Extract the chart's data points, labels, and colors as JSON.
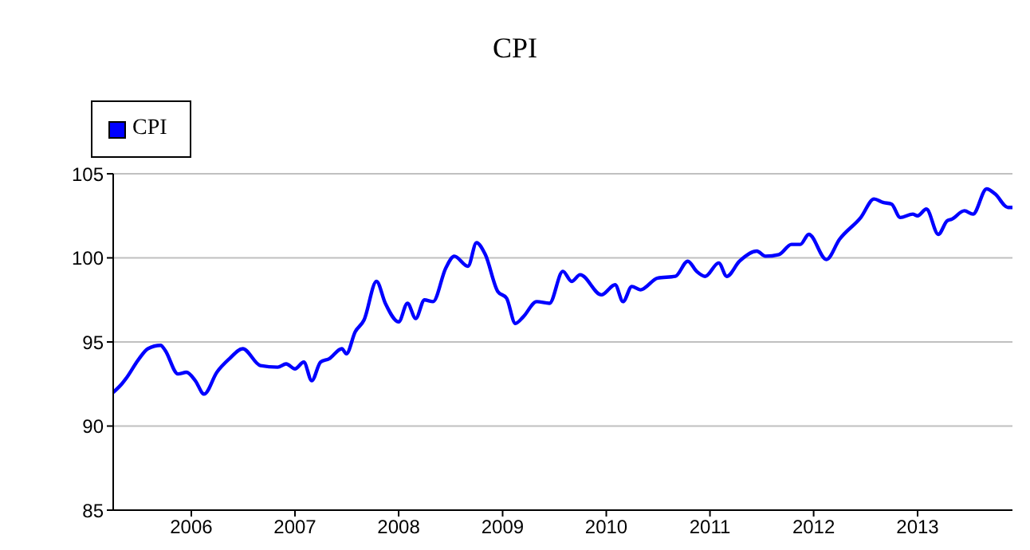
{
  "chart_data": {
    "type": "line",
    "title": "CPI",
    "x": [
      "2005-04-01",
      "2005-05-01",
      "2005-05-15",
      "2005-07-01",
      "2005-08-01",
      "2005-09-15",
      "2005-10-01",
      "2005-11-15",
      "2005-12-15",
      "2006-01-15",
      "2006-02-15",
      "2006-04-01",
      "2006-05-15",
      "2006-07-01",
      "2006-09-01",
      "2006-11-01",
      "2006-12-01",
      "2007-01-01",
      "2007-02-01",
      "2007-03-01",
      "2007-04-01",
      "2007-05-01",
      "2007-06-15",
      "2007-07-01",
      "2007-08-01",
      "2007-09-01",
      "2007-10-15",
      "2007-11-15",
      "2008-01-01",
      "2008-02-01",
      "2008-03-01",
      "2008-04-01",
      "2008-05-01",
      "2008-06-15",
      "2008-07-15",
      "2008-09-01",
      "2008-10-01",
      "2008-11-01",
      "2008-12-15",
      "2009-01-15",
      "2009-02-15",
      "2009-03-15",
      "2009-05-01",
      "2009-06-15",
      "2009-08-01",
      "2009-09-01",
      "2009-10-01",
      "2009-12-15",
      "2010-02-01",
      "2010-03-01",
      "2010-04-01",
      "2010-05-01",
      "2010-07-01",
      "2010-09-01",
      "2010-10-15",
      "2010-11-15",
      "2010-12-15",
      "2011-02-01",
      "2011-03-01",
      "2011-04-15",
      "2011-06-15",
      "2011-07-15",
      "2011-09-01",
      "2011-10-15",
      "2011-11-15",
      "2011-12-15",
      "2012-02-15",
      "2012-04-01",
      "2012-06-15",
      "2012-08-01",
      "2012-09-01",
      "2012-10-01",
      "2012-11-01",
      "2012-12-15",
      "2013-01-01",
      "2013-02-01",
      "2013-03-15",
      "2013-04-15",
      "2013-05-01",
      "2013-06-15",
      "2013-07-15",
      "2013-09-01",
      "2013-10-01",
      "2013-11-15",
      "2013-12-01"
    ],
    "series": [
      {
        "name": "CPI",
        "color": "#0000ff",
        "values": [
          92.0,
          92.5,
          92.8,
          94.0,
          94.6,
          94.8,
          94.5,
          93.1,
          93.2,
          92.7,
          91.9,
          93.2,
          94.0,
          94.6,
          93.6,
          93.5,
          93.7,
          93.4,
          93.8,
          92.7,
          93.8,
          94.0,
          94.6,
          94.3,
          95.6,
          96.3,
          98.6,
          97.3,
          96.2,
          97.3,
          96.4,
          97.5,
          97.4,
          99.4,
          100.1,
          99.5,
          100.9,
          100.2,
          98.0,
          97.6,
          96.1,
          96.5,
          97.4,
          97.3,
          99.2,
          98.6,
          99.0,
          97.8,
          98.4,
          97.4,
          98.3,
          98.1,
          98.8,
          98.9,
          99.8,
          99.2,
          98.9,
          99.7,
          98.9,
          99.8,
          100.4,
          100.1,
          100.2,
          100.8,
          100.8,
          101.4,
          99.9,
          101.1,
          102.4,
          103.5,
          103.3,
          103.2,
          102.4,
          102.6,
          102.5,
          102.9,
          101.4,
          102.2,
          102.3,
          102.8,
          102.6,
          104.1,
          103.8,
          103.0,
          103.0
        ]
      }
    ],
    "xlim": [
      "2005-04-01",
      "2013-12-01"
    ],
    "xticks": [
      {
        "value": "2006-01-01",
        "label": "2006"
      },
      {
        "value": "2007-01-01",
        "label": "2007"
      },
      {
        "value": "2008-01-01",
        "label": "2008"
      },
      {
        "value": "2009-01-01",
        "label": "2009"
      },
      {
        "value": "2010-01-01",
        "label": "2010"
      },
      {
        "value": "2011-01-01",
        "label": "2011"
      },
      {
        "value": "2012-01-01",
        "label": "2012"
      },
      {
        "value": "2013-01-01",
        "label": "2013"
      }
    ],
    "ylim": [
      85,
      105
    ],
    "yticks": [
      85,
      90,
      95,
      100,
      105
    ],
    "grid": "y",
    "legend": "top left",
    "marker": "none",
    "line_style": "solid"
  }
}
